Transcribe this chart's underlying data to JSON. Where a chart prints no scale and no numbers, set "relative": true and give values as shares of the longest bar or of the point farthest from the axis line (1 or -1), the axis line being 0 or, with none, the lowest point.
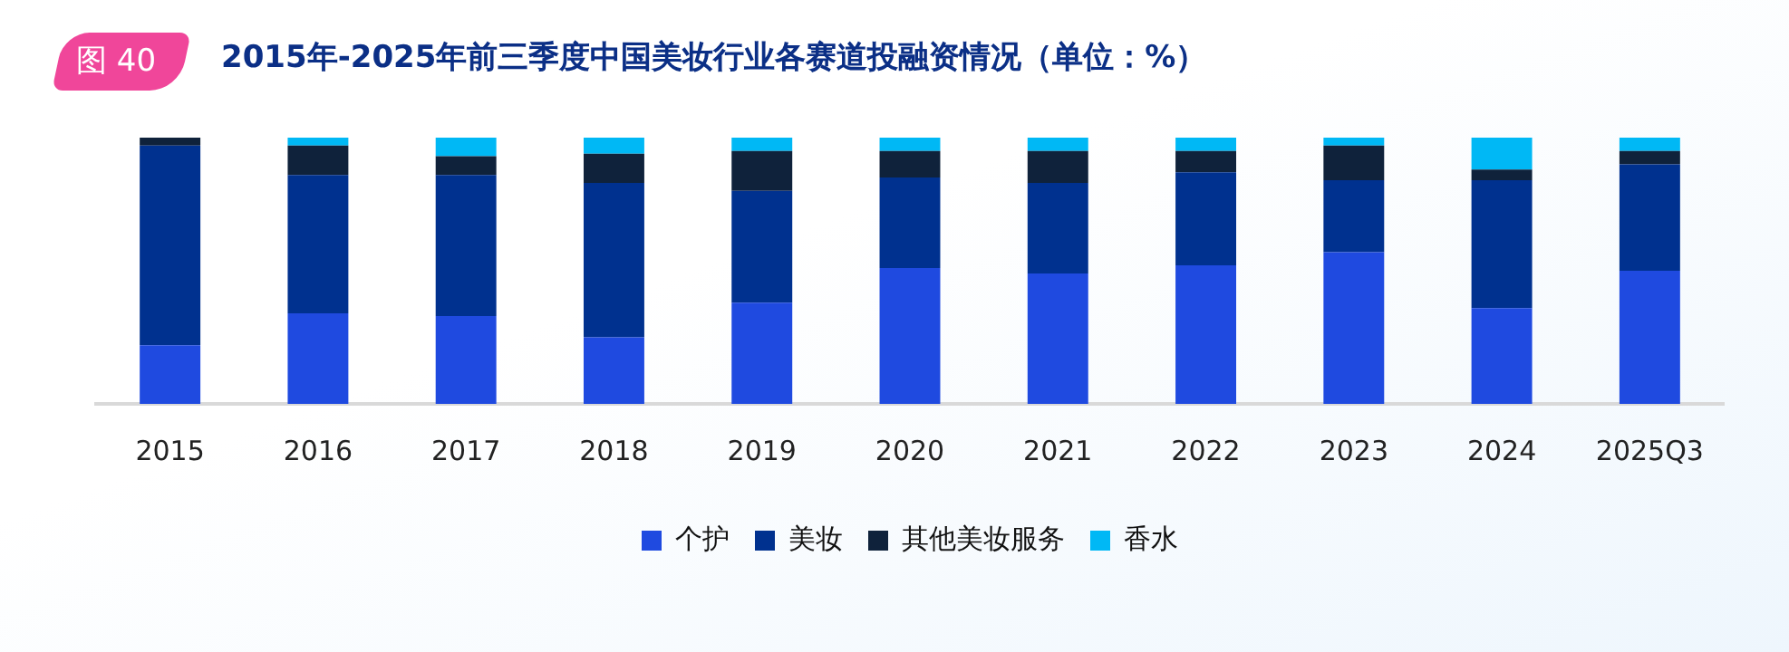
{
  "chart_data": {
    "type": "bar",
    "title": "2015年-2025年前三季度中国美妆行业各赛道投融资情况（单位：%）",
    "annotations": [
      "图 40"
    ],
    "stacked": true,
    "relative": true,
    "legend": "bottom",
    "grid": false,
    "categories": [
      "2015",
      "2016",
      "2017",
      "2018",
      "2019",
      "2020",
      "2021",
      "2022",
      "2023",
      "2024",
      "2025Q3"
    ],
    "series": [
      {
        "name": "个护",
        "color": "#1f4ae0",
        "values": [
          0.22,
          0.34,
          0.33,
          0.25,
          0.38,
          0.51,
          0.49,
          0.52,
          0.57,
          0.36,
          0.5
        ]
      },
      {
        "name": "美妆",
        "color": "#00318f",
        "values": [
          0.75,
          0.52,
          0.53,
          0.58,
          0.42,
          0.34,
          0.34,
          0.35,
          0.27,
          0.48,
          0.4
        ]
      },
      {
        "name": "其他美妆服务",
        "color": "#0f223b",
        "values": [
          0.03,
          0.11,
          0.07,
          0.11,
          0.15,
          0.1,
          0.12,
          0.08,
          0.13,
          0.04,
          0.05
        ]
      },
      {
        "name": "香水",
        "color": "#00b8f5",
        "values": [
          0,
          0.03,
          0.07,
          0.06,
          0.05,
          0.05,
          0.05,
          0.05,
          0.03,
          0.12,
          0.05
        ]
      }
    ]
  }
}
